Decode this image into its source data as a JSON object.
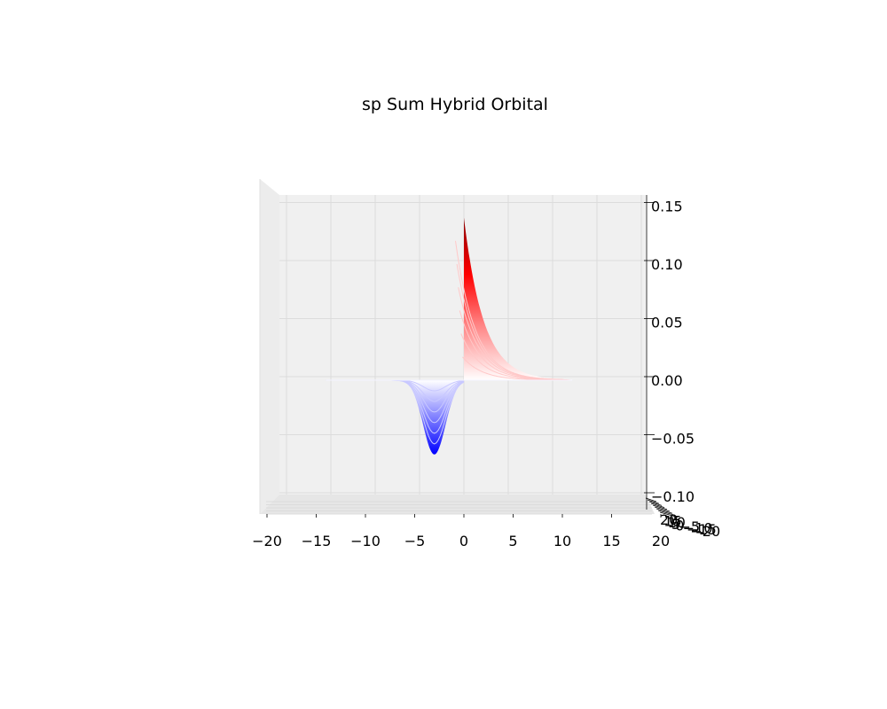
{
  "chart_data": {
    "type": "surface",
    "title": "sp Sum Hybrid Orbital",
    "xlabel": "",
    "ylabel": "",
    "zlabel": "",
    "x_ticks": [
      -20,
      -15,
      -10,
      -5,
      0,
      5,
      10,
      15,
      20
    ],
    "x_tick_labels": [
      "−20",
      "−15",
      "−10",
      "−5",
      "0",
      "5",
      "10",
      "15",
      "20"
    ],
    "z_ticks": [
      0.15,
      0.1,
      0.05,
      0.0,
      -0.05,
      -0.1
    ],
    "z_tick_labels": [
      "0.15",
      "0.10",
      "0.05",
      "0.00",
      "−0.05",
      "−0.10"
    ],
    "y_tick_labels_overlapping": [
      "20",
      "15",
      "10",
      "5",
      "0",
      "−5",
      "−10",
      "−15",
      "−20"
    ],
    "xlim": [
      -20,
      20
    ],
    "zlim": [
      -0.1,
      0.16
    ],
    "grid": true,
    "colormap": "bwr",
    "peak": {
      "x": 0,
      "z": 0.14
    },
    "trough": {
      "x": -3,
      "z": -0.064
    },
    "colors": {
      "positive": "#ff0000",
      "positive_dark": "#8b0000",
      "negative": "#0000ff",
      "pane": "#f0f0f0",
      "grid": "#dcdcdc"
    }
  }
}
